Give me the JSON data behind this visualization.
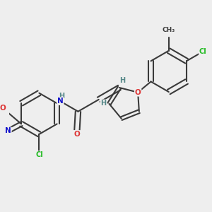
{
  "background_color": "#eeeeee",
  "bond_color": "#3a3a3a",
  "atom_colors": {
    "O": "#dd3333",
    "N": "#1111cc",
    "Cl": "#22bb22",
    "H": "#558888",
    "C": "#3a3a3a"
  },
  "figsize": [
    3.0,
    3.0
  ],
  "dpi": 100
}
